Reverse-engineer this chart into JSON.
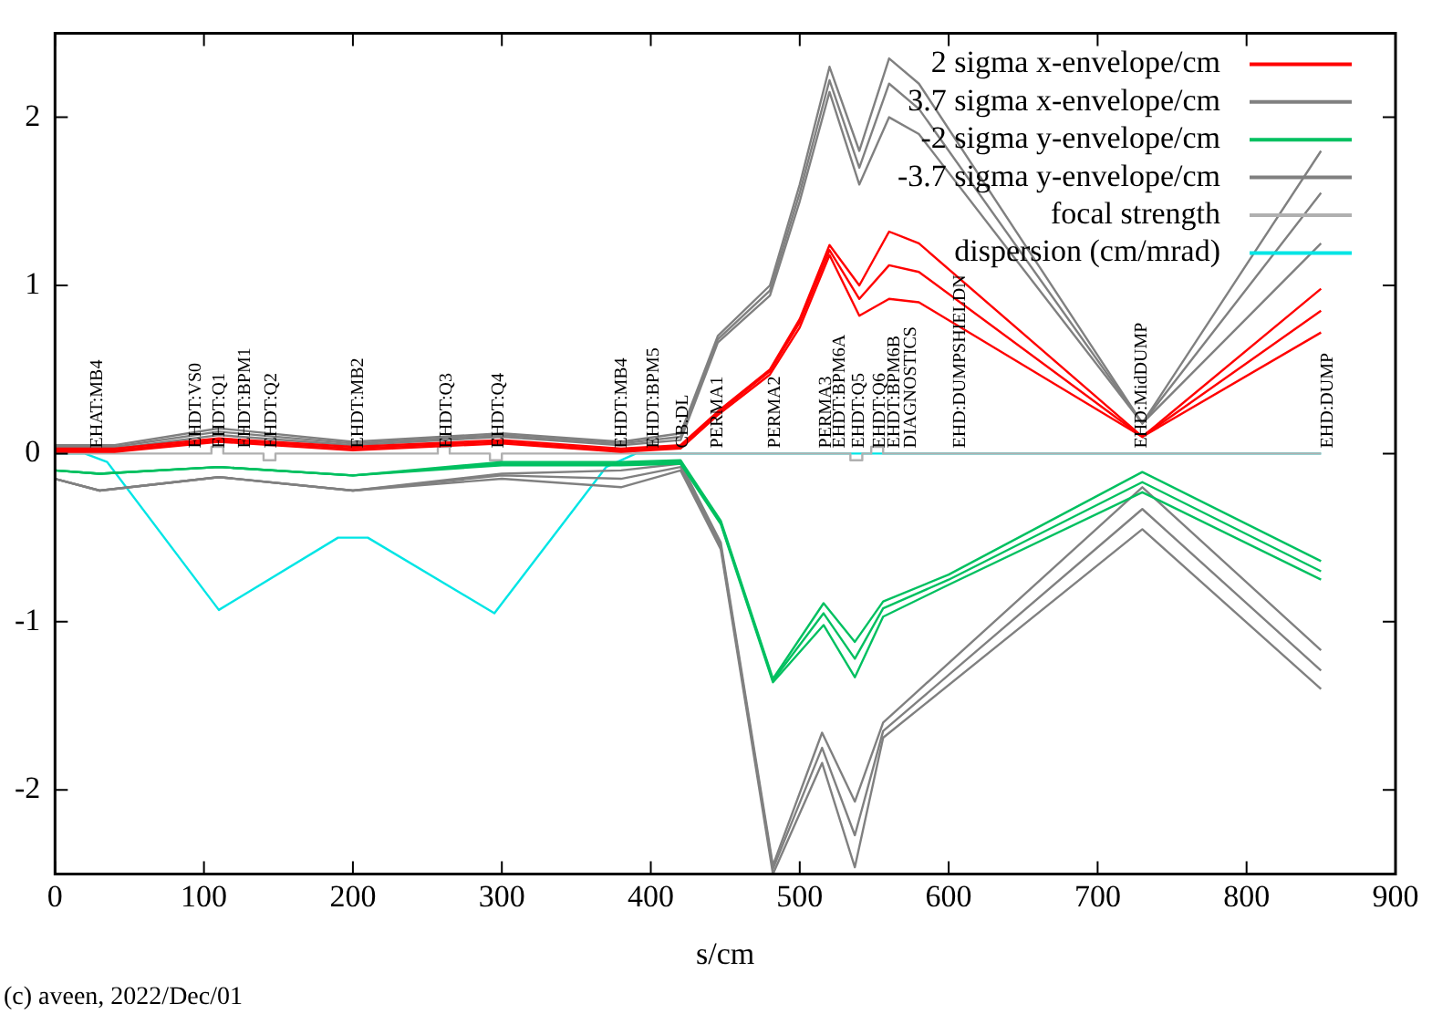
{
  "chart_data": {
    "type": "line",
    "xlabel": "s/cm",
    "xlim": [
      0,
      900
    ],
    "ylim": [
      -2.5,
      2.5
    ],
    "xticks": [
      0,
      100,
      200,
      300,
      400,
      500,
      600,
      700,
      800,
      900
    ],
    "yticks": [
      -2,
      -1,
      0,
      1,
      2
    ],
    "grid": false,
    "legend": "top right",
    "marker": "none",
    "line_style": "solid",
    "series": [
      {
        "name": "2 sigma x-envelope/cm",
        "color": "#ff0000",
        "x": [
          0,
          40,
          110,
          200,
          300,
          380,
          420,
          445,
          480,
          500,
          520,
          540,
          560,
          580,
          730,
          850
        ],
        "values": [
          0.03,
          0.03,
          0.09,
          0.04,
          0.08,
          0.03,
          0.05,
          0.25,
          0.5,
          0.8,
          1.24,
          1.0,
          1.32,
          1.25,
          0.1,
          0.98
        ]
      },
      {
        "color": "#ff0000",
        "x": [
          0,
          40,
          110,
          200,
          300,
          380,
          420,
          445,
          480,
          500,
          520,
          540,
          560,
          580,
          730,
          850
        ],
        "values": [
          0.02,
          0.02,
          0.08,
          0.03,
          0.07,
          0.02,
          0.04,
          0.24,
          0.49,
          0.78,
          1.21,
          0.92,
          1.12,
          1.08,
          0.1,
          0.85
        ]
      },
      {
        "color": "#ff0000",
        "x": [
          0,
          40,
          110,
          200,
          300,
          380,
          420,
          445,
          480,
          500,
          520,
          540,
          560,
          580,
          730,
          850
        ],
        "values": [
          0.01,
          0.01,
          0.07,
          0.02,
          0.06,
          0.01,
          0.03,
          0.23,
          0.47,
          0.75,
          1.18,
          0.82,
          0.92,
          0.9,
          0.1,
          0.72
        ]
      },
      {
        "name": "3.7 sigma x-envelope/cm",
        "color": "#808080",
        "x": [
          0,
          40,
          110,
          200,
          300,
          380,
          420,
          445,
          480,
          500,
          520,
          540,
          560,
          580,
          730,
          850
        ],
        "values": [
          0.05,
          0.05,
          0.15,
          0.07,
          0.12,
          0.07,
          0.12,
          0.7,
          1.0,
          1.6,
          2.3,
          1.8,
          2.35,
          2.2,
          0.18,
          1.8
        ]
      },
      {
        "color": "#808080",
        "x": [
          0,
          40,
          110,
          200,
          300,
          380,
          420,
          445,
          480,
          500,
          520,
          540,
          560,
          580,
          730,
          850
        ],
        "values": [
          0.04,
          0.04,
          0.13,
          0.06,
          0.11,
          0.06,
          0.1,
          0.68,
          0.97,
          1.55,
          2.22,
          1.7,
          2.2,
          2.05,
          0.18,
          1.55
        ]
      },
      {
        "color": "#808080",
        "x": [
          0,
          40,
          110,
          200,
          300,
          380,
          420,
          445,
          480,
          500,
          520,
          540,
          560,
          580,
          730,
          850
        ],
        "values": [
          0.03,
          0.03,
          0.11,
          0.05,
          0.1,
          0.05,
          0.08,
          0.66,
          0.94,
          1.5,
          2.15,
          1.6,
          2.0,
          1.9,
          0.18,
          1.25
        ]
      },
      {
        "name": "-2 sigma y-envelope/cm",
        "color": "#00c060",
        "x": [
          0,
          30,
          110,
          200,
          300,
          380,
          420,
          447,
          482,
          516,
          537,
          556,
          600,
          730,
          850
        ],
        "values": [
          -0.1,
          -0.12,
          -0.08,
          -0.13,
          -0.05,
          -0.05,
          -0.04,
          -0.4,
          -1.34,
          -0.89,
          -1.12,
          -0.88,
          -0.72,
          -0.11,
          -0.64
        ]
      },
      {
        "color": "#00c060",
        "x": [
          0,
          30,
          110,
          200,
          300,
          380,
          420,
          447,
          482,
          516,
          537,
          556,
          600,
          730,
          850
        ],
        "values": [
          -0.1,
          -0.12,
          -0.08,
          -0.13,
          -0.06,
          -0.06,
          -0.05,
          -0.41,
          -1.35,
          -0.95,
          -1.22,
          -0.92,
          -0.75,
          -0.17,
          -0.7
        ]
      },
      {
        "color": "#00c060",
        "x": [
          0,
          30,
          110,
          200,
          300,
          380,
          420,
          447,
          482,
          516,
          537,
          556,
          600,
          730,
          850
        ],
        "values": [
          -0.1,
          -0.12,
          -0.08,
          -0.13,
          -0.07,
          -0.07,
          -0.06,
          -0.42,
          -1.36,
          -1.02,
          -1.33,
          -0.97,
          -0.78,
          -0.23,
          -0.75
        ]
      },
      {
        "name": "-3.7 sigma y-envelope/cm",
        "color": "#808080",
        "x": [
          0,
          30,
          110,
          200,
          300,
          380,
          420,
          447,
          482,
          515,
          537,
          556,
          730,
          850
        ],
        "values": [
          -0.15,
          -0.22,
          -0.14,
          -0.22,
          -0.12,
          -0.1,
          -0.06,
          -0.53,
          -2.45,
          -1.66,
          -2.07,
          -1.6,
          -0.2,
          -1.17
        ]
      },
      {
        "color": "#808080",
        "x": [
          0,
          30,
          110,
          200,
          300,
          380,
          420,
          447,
          482,
          515,
          537,
          556,
          730,
          850
        ],
        "values": [
          -0.15,
          -0.22,
          -0.14,
          -0.22,
          -0.13,
          -0.15,
          -0.08,
          -0.55,
          -2.47,
          -1.75,
          -2.27,
          -1.65,
          -0.33,
          -1.29
        ]
      },
      {
        "color": "#808080",
        "x": [
          0,
          30,
          110,
          200,
          300,
          380,
          420,
          447,
          482,
          515,
          537,
          556,
          730,
          850
        ],
        "values": [
          -0.15,
          -0.22,
          -0.14,
          -0.22,
          -0.15,
          -0.2,
          -0.1,
          -0.57,
          -2.5,
          -1.84,
          -2.46,
          -1.69,
          -0.45,
          -1.4
        ]
      },
      {
        "name": "focal strength",
        "color": "#b0b0b0",
        "x": [
          0,
          105,
          105,
          113,
          113,
          140,
          140,
          148,
          148,
          257,
          257,
          265,
          265,
          292,
          292,
          300,
          300,
          534,
          534,
          542,
          542,
          548,
          548,
          556,
          556,
          850
        ],
        "values": [
          0,
          0,
          0.04,
          0.04,
          0,
          0,
          -0.04,
          -0.04,
          0,
          0,
          0.04,
          0.04,
          0,
          0,
          -0.04,
          -0.04,
          0,
          0,
          -0.04,
          -0.04,
          0,
          0,
          0.04,
          0.04,
          0,
          0
        ]
      },
      {
        "name": "dispersion (cm/mrad)",
        "color": "#00e5e5",
        "x": [
          0,
          20,
          35,
          110,
          190,
          210,
          295,
          370,
          390,
          420,
          850
        ],
        "values": [
          0,
          0,
          -0.05,
          -0.93,
          -0.5,
          -0.5,
          -0.95,
          -0.08,
          0,
          0,
          0
        ]
      }
    ],
    "annotations": [
      {
        "text": "EHAT:MB4",
        "x": 27,
        "y": 0
      },
      {
        "text": "EHDT:VS0",
        "x": 93,
        "y": 0
      },
      {
        "text": "EHDT:Q1",
        "x": 109,
        "y": 0
      },
      {
        "text": "EHDT:BPM1",
        "x": 126,
        "y": 0
      },
      {
        "text": "EHDT:Q2",
        "x": 144,
        "y": 0
      },
      {
        "text": "EHDT:MB2",
        "x": 202,
        "y": 0
      },
      {
        "text": "EHDT:Q3",
        "x": 261,
        "y": 0
      },
      {
        "text": "EHDT:Q4",
        "x": 296,
        "y": 0
      },
      {
        "text": "EHDT:MB4",
        "x": 379,
        "y": 0
      },
      {
        "text": "EHDT:BPM5",
        "x": 400,
        "y": 0
      },
      {
        "text": "CB:DL",
        "x": 420,
        "y": 0
      },
      {
        "text": "PERMA1",
        "x": 443,
        "y": 0
      },
      {
        "text": "PERMA2",
        "x": 482,
        "y": 0
      },
      {
        "text": "PERMA3",
        "x": 516,
        "y": 0
      },
      {
        "text": "EHDT:BPM6A",
        "x": 525,
        "y": 0
      },
      {
        "text": "EHDT:Q5",
        "x": 538,
        "y": 0
      },
      {
        "text": "EHDT:Q6",
        "x": 552,
        "y": 0
      },
      {
        "text": "EHDT:BPM6B",
        "x": 562,
        "y": 0
      },
      {
        "text": "DIAGNOSTICS",
        "x": 573,
        "y": 0
      },
      {
        "text": "EHD:DUMPSHIELDN",
        "x": 606,
        "y": 0
      },
      {
        "text": "EHD:MidDUMP",
        "x": 728,
        "y": 0
      },
      {
        "text": "EHD:DUMP",
        "x": 853,
        "y": 0
      },
      "(c) aveen, 2022/Dec/01"
    ]
  }
}
